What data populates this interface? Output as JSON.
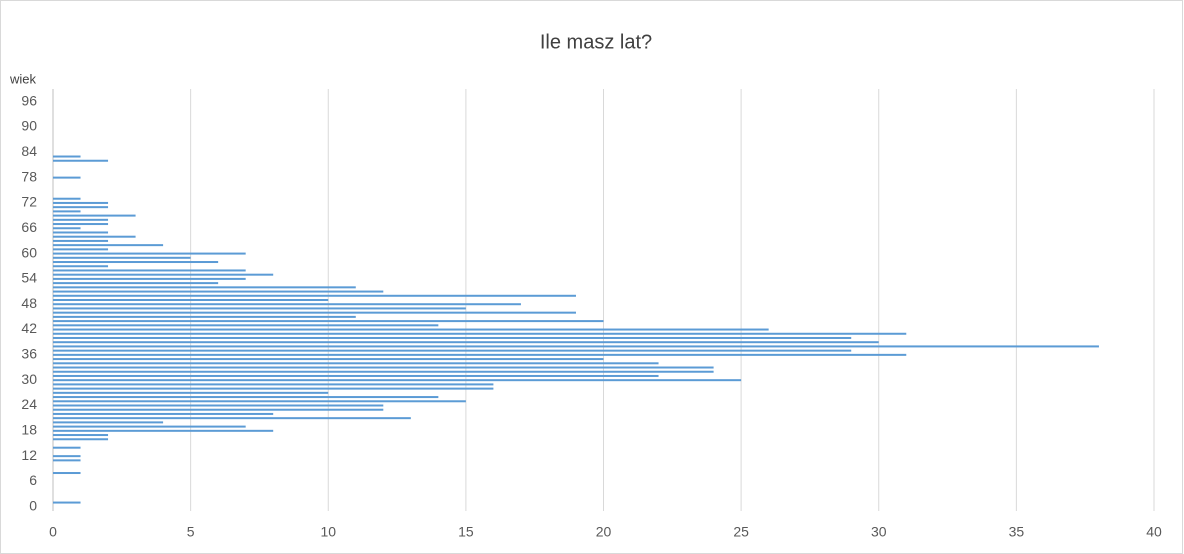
{
  "chart_data": {
    "type": "hbar",
    "title": "Ile masz lat?",
    "y_axis_label": "wiek",
    "y": [
      1,
      8,
      11,
      12,
      14,
      16,
      17,
      18,
      19,
      20,
      21,
      22,
      23,
      24,
      25,
      26,
      27,
      28,
      29,
      30,
      31,
      32,
      33,
      34,
      35,
      36,
      37,
      38,
      39,
      40,
      41,
      42,
      43,
      44,
      45,
      46,
      47,
      48,
      49,
      50,
      51,
      52,
      53,
      54,
      55,
      56,
      57,
      58,
      59,
      60,
      61,
      62,
      63,
      64,
      65,
      66,
      67,
      68,
      69,
      70,
      71,
      72,
      73,
      78,
      82,
      83
    ],
    "values": [
      1,
      1,
      1,
      1,
      1,
      2,
      2,
      8,
      7,
      4,
      13,
      8,
      12,
      12,
      15,
      14,
      10,
      16,
      16,
      25,
      22,
      24,
      24,
      22,
      20,
      31,
      29,
      38,
      30,
      29,
      31,
      26,
      14,
      20,
      11,
      19,
      15,
      17,
      10,
      19,
      12,
      11,
      6,
      7,
      8,
      7,
      2,
      6,
      5,
      7,
      2,
      4,
      2,
      3,
      2,
      1,
      2,
      2,
      3,
      1,
      2,
      2,
      1,
      1,
      2,
      1
    ],
    "color": "#5b9bd5",
    "xlim": [
      0,
      40
    ],
    "xticks": [
      0,
      5,
      10,
      15,
      20,
      25,
      30,
      35,
      40
    ],
    "ylim": [
      -1,
      99
    ],
    "yticks": [
      0,
      6,
      12,
      18,
      24,
      30,
      36,
      42,
      48,
      54,
      60,
      66,
      72,
      78,
      84,
      90,
      96
    ],
    "grid": true
  }
}
